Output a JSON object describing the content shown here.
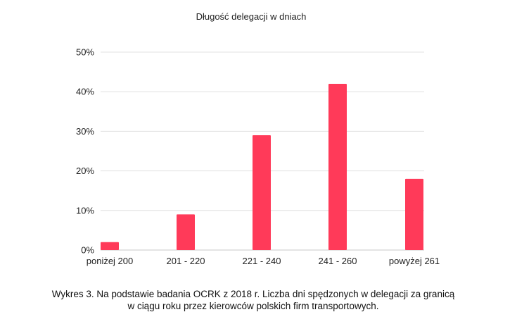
{
  "chart_data": {
    "type": "bar",
    "title": "Długość delegacji w dniach",
    "xlabel": "",
    "ylabel": "",
    "categories": [
      "poniżej 200",
      "201 - 220",
      "221 - 240",
      "241 - 260",
      "powyżej 261"
    ],
    "values": [
      2,
      9,
      29,
      42,
      18
    ],
    "ylim": [
      0,
      50
    ],
    "yticks": [
      0,
      10,
      20,
      30,
      40,
      50
    ],
    "ytick_labels": [
      "0%",
      "10%",
      "20%",
      "30%",
      "40%",
      "50%"
    ],
    "grid": true,
    "legend": "none",
    "bar_color": "#ff3a59",
    "grid_color": "#e0e0e0"
  },
  "caption": {
    "line1": "Wykres 3. Na podstawie badania OCRK z 2018 r. Liczba dni spędzonych w delegacji za granicą",
    "line2": "w ciągu roku przez kierowców polskich firm transportowych."
  }
}
